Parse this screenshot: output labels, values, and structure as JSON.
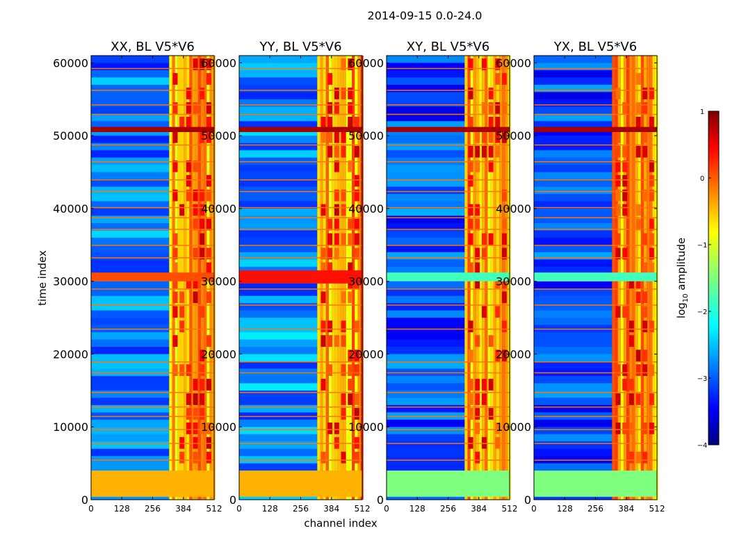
{
  "figure": {
    "suptitle": "2014-09-15 0.0-24.0"
  },
  "colors": {
    "jet": [
      "#00007f",
      "#0000ff",
      "#007fff",
      "#00ffff",
      "#7fff7f",
      "#ffff00",
      "#ff7f00",
      "#ff0000",
      "#7f0000"
    ],
    "background_low": "#1e3cf0",
    "axis_frame": "#000000"
  },
  "chart_data": [
    {
      "type": "heatmap",
      "title": "XX, BL V5*V6",
      "xlabel": "channel index",
      "ylabel": "time index",
      "xlim": [
        0,
        512
      ],
      "ylim": [
        0,
        61000
      ],
      "xticks": [
        0,
        128,
        256,
        384,
        512
      ],
      "yticks": [
        0,
        10000,
        20000,
        30000,
        40000,
        50000,
        60000
      ],
      "yticklabels": [
        "0",
        "10000",
        "20000",
        "30000",
        "40000",
        "50000",
        "60000"
      ],
      "colorbar_range": [
        -4,
        1
      ],
      "bright_channel_band": [
        325,
        512
      ],
      "horizontal_bands": [
        [
          400,
          4000
        ],
        [
          30000,
          31200
        ],
        [
          50500,
          51200
        ]
      ],
      "horizontal_band_level": [
        -0.5,
        0.0,
        0.8
      ],
      "background_level": -2.8
    },
    {
      "type": "heatmap",
      "title": "YY, BL V5*V6",
      "xlabel": "channel index",
      "ylabel": "",
      "xlim": [
        0,
        512
      ],
      "ylim": [
        0,
        61000
      ],
      "xticks": [
        0,
        128,
        256,
        384,
        512
      ],
      "yticks": [
        0,
        10000,
        20000,
        30000,
        40000,
        50000,
        60000
      ],
      "yticklabels": [
        "0",
        "10000",
        "20000",
        "30000",
        "40000",
        "50000",
        "60000"
      ],
      "colorbar_range": [
        -4,
        1
      ],
      "bright_channel_band": [
        325,
        512
      ],
      "horizontal_bands": [
        [
          400,
          4000
        ],
        [
          29700,
          31500
        ],
        [
          50500,
          51200
        ]
      ],
      "horizontal_band_level": [
        -0.5,
        0.3,
        0.8
      ],
      "background_level": -2.7
    },
    {
      "type": "heatmap",
      "title": "XY, BL V5*V6",
      "xlabel": "channel index",
      "ylabel": "",
      "xlim": [
        0,
        512
      ],
      "ylim": [
        0,
        61000
      ],
      "xticks": [
        0,
        128,
        256,
        384,
        512
      ],
      "yticks": [
        0,
        10000,
        20000,
        30000,
        40000,
        50000,
        60000
      ],
      "yticklabels": [
        "0",
        "10000",
        "20000",
        "30000",
        "40000",
        "50000",
        "60000"
      ],
      "colorbar_range": [
        -4,
        1
      ],
      "bright_channel_band": [
        325,
        512
      ],
      "horizontal_bands": [
        [
          400,
          4000
        ],
        [
          30000,
          31200
        ],
        [
          50500,
          51200
        ]
      ],
      "horizontal_band_level": [
        -1.5,
        -1.8,
        0.8
      ],
      "background_level": -3.0
    },
    {
      "type": "heatmap",
      "title": "YX, BL V5*V6",
      "xlabel": "channel index",
      "ylabel": "",
      "xlim": [
        0,
        512
      ],
      "ylim": [
        0,
        61000
      ],
      "xticks": [
        0,
        128,
        256,
        384,
        512
      ],
      "yticks": [
        0,
        10000,
        20000,
        30000,
        40000,
        50000,
        60000
      ],
      "yticklabels": [
        "0",
        "10000",
        "20000",
        "30000",
        "40000",
        "50000",
        "60000"
      ],
      "colorbar_range": [
        -4,
        1
      ],
      "bright_channel_band": [
        325,
        512
      ],
      "horizontal_bands": [
        [
          400,
          4000
        ],
        [
          30000,
          31200
        ],
        [
          50500,
          51200
        ]
      ],
      "horizontal_band_level": [
        -1.5,
        -1.8,
        0.8
      ],
      "background_level": -3.0
    }
  ],
  "colorbar": {
    "label": "log10 amplitude",
    "label_base": "log",
    "label_sub": "10",
    "label_rest": " amplitude",
    "range": [
      -4,
      1
    ],
    "ticks": [
      1,
      0,
      -1,
      -2,
      -3,
      -4
    ],
    "ticklabels": [
      "1",
      "0",
      "−1",
      "−2",
      "−3",
      "−4"
    ]
  }
}
